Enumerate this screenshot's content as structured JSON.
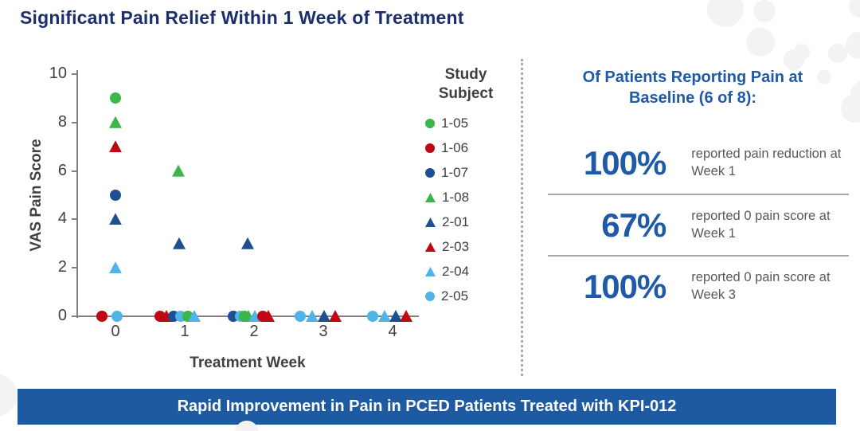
{
  "title": "Significant Pain Relief Within 1 Week of Treatment",
  "chart_data": {
    "type": "scatter",
    "title": "",
    "xlabel": "Treatment Week",
    "ylabel": "VAS Pain Score",
    "xlim": [
      -0.5,
      4.4
    ],
    "ylim": [
      0,
      10
    ],
    "xticks": [
      0,
      1,
      2,
      3,
      4
    ],
    "yticks": [
      0,
      2,
      4,
      6,
      8,
      10
    ],
    "grid": false,
    "legend_title": "Study Subject",
    "legend_position": "right",
    "series": [
      {
        "name": "1-05",
        "marker": "circle",
        "color": "#3cb54a",
        "points": [
          {
            "week": 0,
            "score": 9,
            "dx": 0
          },
          {
            "week": 1,
            "score": 0,
            "dx": 4
          },
          {
            "week": 2,
            "score": 0,
            "dx": -12
          }
        ]
      },
      {
        "name": "1-06",
        "marker": "circle",
        "color": "#c00714",
        "points": [
          {
            "week": 0,
            "score": 0,
            "dx": -17
          },
          {
            "week": 1,
            "score": 0,
            "dx": -31
          },
          {
            "week": 2,
            "score": 0,
            "dx": 11
          }
        ]
      },
      {
        "name": "1-07",
        "marker": "circle",
        "color": "#1d4f91",
        "points": [
          {
            "week": 0,
            "score": 5,
            "dx": 0
          },
          {
            "week": 1,
            "score": 0,
            "dx": -14
          },
          {
            "week": 2,
            "score": 0,
            "dx": -26
          }
        ]
      },
      {
        "name": "1-08",
        "marker": "triangle",
        "color": "#3cb54a",
        "points": [
          {
            "week": 0,
            "score": 8,
            "dx": 0
          },
          {
            "week": 1,
            "score": 6,
            "dx": -8
          },
          {
            "week": 2,
            "score": 0,
            "dx": -7
          }
        ]
      },
      {
        "name": "2-01",
        "marker": "triangle",
        "color": "#1d4f91",
        "points": [
          {
            "week": 0,
            "score": 4,
            "dx": 0
          },
          {
            "week": 1,
            "score": 3,
            "dx": -7
          },
          {
            "week": 2,
            "score": 3,
            "dx": -8
          },
          {
            "week": 3,
            "score": 0,
            "dx": 1
          },
          {
            "week": 4,
            "score": 0,
            "dx": 4
          }
        ]
      },
      {
        "name": "2-03",
        "marker": "triangle",
        "color": "#c00714",
        "points": [
          {
            "week": 0,
            "score": 7,
            "dx": 0
          },
          {
            "week": 1,
            "score": 0,
            "dx": -23
          },
          {
            "week": 2,
            "score": 0,
            "dx": 18
          },
          {
            "week": 3,
            "score": 0,
            "dx": 15
          },
          {
            "week": 4,
            "score": 0,
            "dx": 17
          }
        ]
      },
      {
        "name": "2-04",
        "marker": "triangle",
        "color": "#4fb4e8",
        "points": [
          {
            "week": 0,
            "score": 2,
            "dx": 0
          },
          {
            "week": 1,
            "score": 0,
            "dx": 12
          },
          {
            "week": 2,
            "score": 0,
            "dx": 1
          },
          {
            "week": 3,
            "score": 0,
            "dx": -14
          },
          {
            "week": 4,
            "score": 0,
            "dx": -10
          }
        ]
      },
      {
        "name": "2-05",
        "marker": "circle",
        "color": "#4fb4e8",
        "points": [
          {
            "week": 0,
            "score": 0,
            "dx": 2
          },
          {
            "week": 1,
            "score": 0,
            "dx": -5
          },
          {
            "week": 2,
            "score": 0,
            "dx": -17
          },
          {
            "week": 3,
            "score": 0,
            "dx": -29
          },
          {
            "week": 4,
            "score": 0,
            "dx": -25
          }
        ]
      }
    ]
  },
  "right_panel": {
    "heading": "Of Patients Reporting Pain at Baseline (6 of 8):",
    "stats": [
      {
        "value": "100%",
        "description": "reported pain reduction at Week 1"
      },
      {
        "value": "67%",
        "description": "reported 0 pain score at Week 1"
      },
      {
        "value": "100%",
        "description": "reported 0 pain score at Week 3"
      }
    ]
  },
  "banner": {
    "text": "Rapid Improvement in Pain in PCED Patients Treated with KPI-012"
  },
  "colors": {
    "title_navy": "#1b2f6e",
    "accent_blue": "#1f5aa8",
    "banner_blue": "#1e5aa1",
    "axis_gray": "#808080",
    "text_gray": "#404040",
    "desc_gray": "#595959",
    "green": "#3cb54a",
    "red": "#c00714",
    "dark_blue": "#1d4f91",
    "light_blue": "#4fb4e8"
  }
}
